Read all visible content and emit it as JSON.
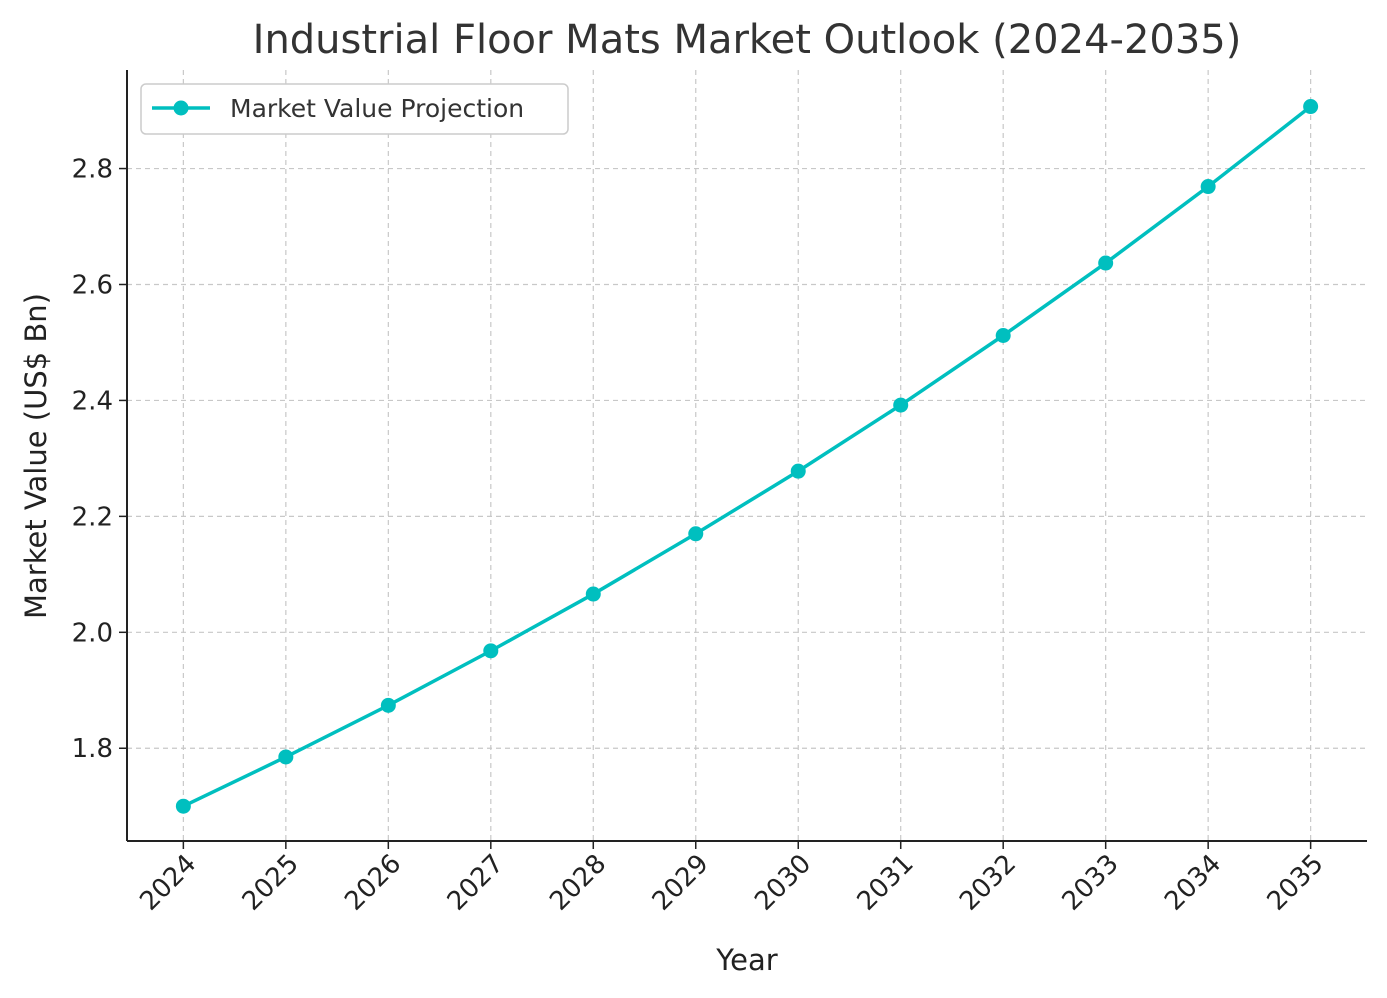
{
  "chart_data": {
    "type": "line",
    "title": "Industrial Floor Mats Market Outlook (2024-2035)",
    "xlabel": "Year",
    "ylabel": "Market Value (US$ Bn)",
    "x": [
      2024,
      2025,
      2026,
      2027,
      2028,
      2029,
      2030,
      2031,
      2032,
      2033,
      2034,
      2035
    ],
    "x_tick_labels": [
      "2024",
      "2025",
      "2026",
      "2027",
      "2028",
      "2029",
      "2030",
      "2031",
      "2032",
      "2033",
      "2034",
      "2035"
    ],
    "series": [
      {
        "name": "Market Value Projection",
        "color": "#00BFBF",
        "values": [
          1.7,
          1.785,
          1.874,
          1.968,
          2.066,
          2.17,
          2.278,
          2.392,
          2.512,
          2.637,
          2.769,
          2.907
        ]
      }
    ],
    "y_ticks": [
      1.8,
      2.0,
      2.2,
      2.4,
      2.6,
      2.8
    ],
    "y_tick_labels": [
      "1.8",
      "2.0",
      "2.2",
      "2.4",
      "2.6",
      "2.8"
    ],
    "xlim": [
      2023.45,
      2035.55
    ],
    "ylim": [
      1.64,
      2.97
    ],
    "grid": true,
    "legend_position": "top-left"
  }
}
